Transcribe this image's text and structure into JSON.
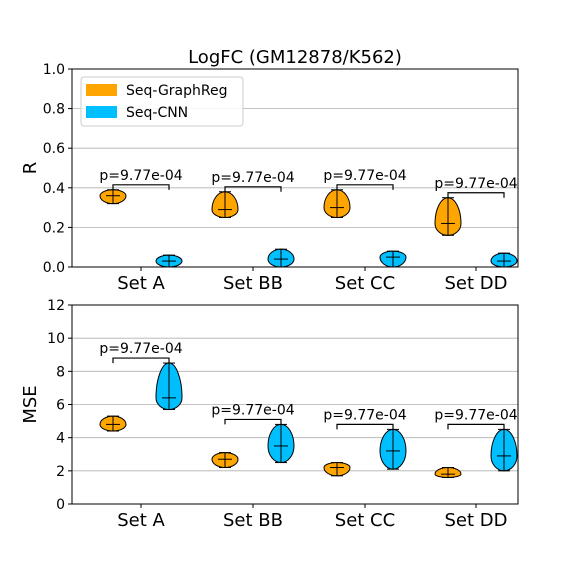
{
  "figure_title": "LogFC (GM12878/K562)",
  "colors": {
    "Seq-GraphReg": "#FFA500",
    "Seq-CNN": "#00BFFF"
  },
  "chart_data": [
    {
      "type": "violin",
      "title": "LogFC (GM12878/K562)",
      "xlabel": "",
      "ylabel": "R",
      "ylim": [
        0,
        1.0
      ],
      "yticks": [
        "0.0",
        "0.2",
        "0.4",
        "0.6",
        "0.8",
        "1.0"
      ],
      "categories": [
        "Set A",
        "Set BB",
        "Set CC",
        "Set DD"
      ],
      "grid": true,
      "legend_position": "top-left",
      "series": [
        {
          "name": "Seq-GraphReg",
          "color": "#FFA500",
          "min": [
            0.32,
            0.25,
            0.25,
            0.16
          ],
          "median": [
            0.36,
            0.29,
            0.3,
            0.22
          ],
          "max": [
            0.39,
            0.38,
            0.39,
            0.35
          ]
        },
        {
          "name": "Seq-CNN",
          "color": "#00BFFF",
          "min": [
            0.0,
            0.0,
            0.0,
            0.0
          ],
          "median": [
            0.03,
            0.04,
            0.05,
            0.03
          ],
          "max": [
            0.06,
            0.09,
            0.08,
            0.07
          ]
        }
      ],
      "annotations": [
        "p=9.77e-04",
        "p=9.77e-04",
        "p=9.77e-04",
        "p=9.77e-04"
      ]
    },
    {
      "type": "violin",
      "title": "",
      "xlabel": "",
      "ylabel": "MSE",
      "ylim": [
        0,
        12
      ],
      "yticks": [
        "0",
        "2",
        "4",
        "6",
        "8",
        "10",
        "12"
      ],
      "categories": [
        "Set A",
        "Set BB",
        "Set CC",
        "Set DD"
      ],
      "grid": true,
      "series": [
        {
          "name": "Seq-GraphReg",
          "color": "#FFA500",
          "min": [
            4.4,
            2.2,
            1.7,
            1.6
          ],
          "median": [
            4.8,
            2.7,
            2.2,
            1.8
          ],
          "max": [
            5.3,
            3.1,
            2.5,
            2.2
          ]
        },
        {
          "name": "Seq-CNN",
          "color": "#00BFFF",
          "min": [
            5.7,
            2.5,
            2.1,
            2.0
          ],
          "median": [
            6.4,
            3.5,
            3.2,
            2.9
          ],
          "max": [
            8.5,
            4.8,
            4.5,
            4.5
          ]
        }
      ],
      "annotations": [
        "p=9.77e-04",
        "p=9.77e-04",
        "p=9.77e-04",
        "p=9.77e-04"
      ]
    }
  ]
}
